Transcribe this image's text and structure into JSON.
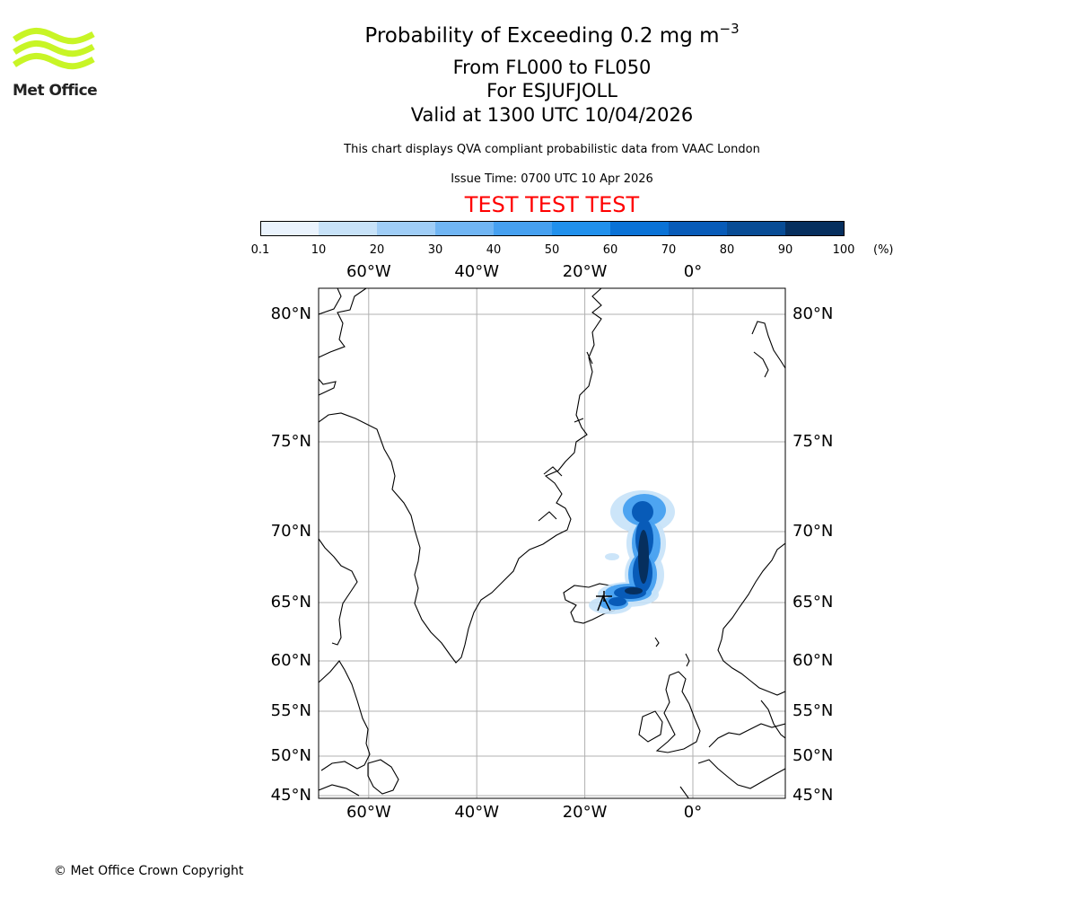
{
  "logo": {
    "text": "Met Office",
    "color": "#c8f526"
  },
  "title": {
    "main": "Probability of Exceeding 0.2 mg m",
    "main_sup": "−3",
    "line2": "From FL000 to FL050",
    "line3": "For ESJUFJOLL",
    "line4": "Valid at 1300 UTC 10/04/2026"
  },
  "description": "This chart displays QVA compliant probabilistic data from VAAC London",
  "issue_time": "Issue Time: 0700 UTC 10 Apr 2026",
  "test_banner": "TEST TEST TEST",
  "colorbar": {
    "ticks": [
      "0.1",
      "10",
      "20",
      "30",
      "40",
      "50",
      "60",
      "70",
      "80",
      "90",
      "100"
    ],
    "colors": [
      "#eaf3fd",
      "#c7e2f8",
      "#9fcdf6",
      "#70b5f3",
      "#46a0f0",
      "#2090ec",
      "#0a72d6",
      "#085bb8",
      "#084c95",
      "#062f5e"
    ],
    "units": "(%)"
  },
  "map": {
    "lon_labels": [
      "60°W",
      "40°W",
      "20°W",
      "0°"
    ],
    "lon_values": [
      -60,
      -40,
      -20,
      0
    ],
    "lat_labels": [
      "80°N",
      "75°N",
      "70°N",
      "65°N",
      "60°N",
      "55°N",
      "50°N",
      "45°N"
    ],
    "lat_values": [
      80,
      75,
      70,
      65,
      60,
      55,
      50,
      45
    ],
    "grid_color": "#b0b0b0"
  },
  "copyright": "© Met Office Crown Copyright"
}
